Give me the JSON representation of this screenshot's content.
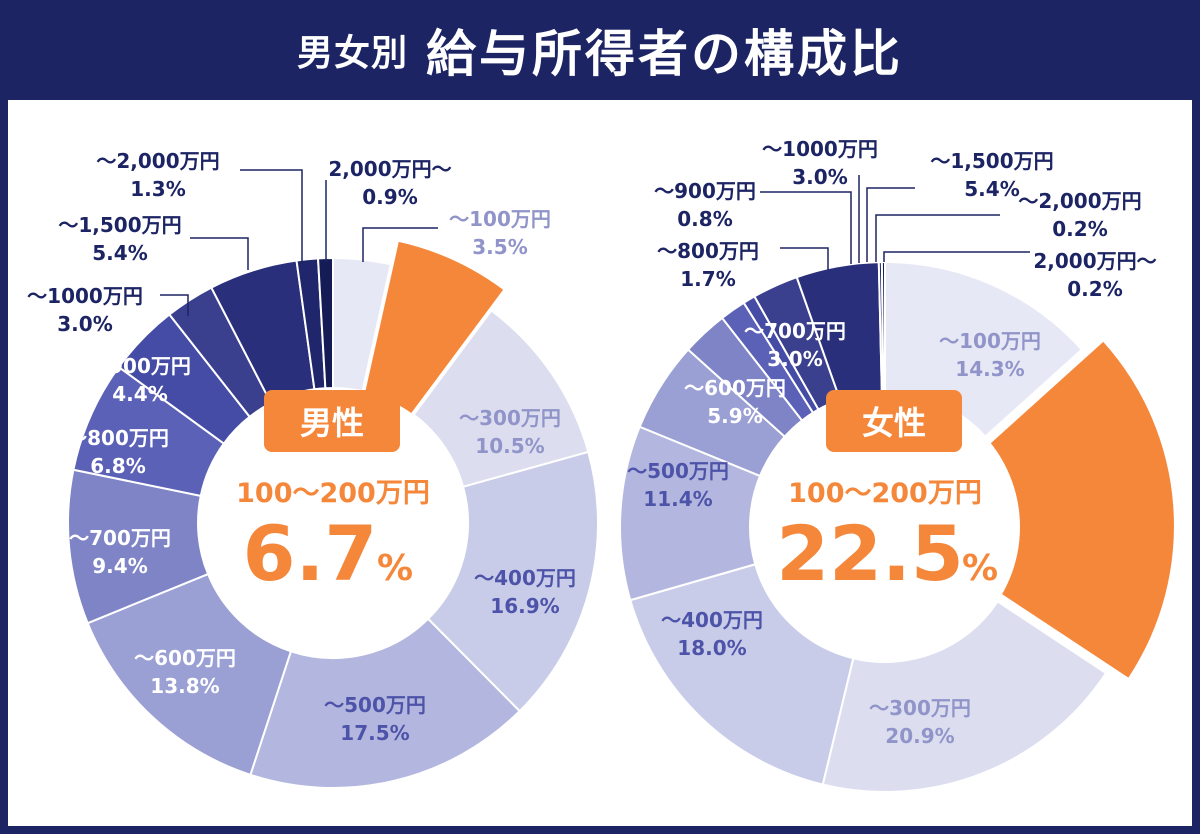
{
  "header": {
    "title_prefix": "男女別",
    "title_main": "給与所得者の構成比"
  },
  "colors": {
    "header_bg": "#1c2464",
    "highlight": "#f5873a",
    "ramp": [
      "#e7e8f5",
      "#f5873a",
      "#dcdef0",
      "#c9cce8",
      "#b3b7df",
      "#9a9fd4",
      "#7e84c6",
      "#5c61b8",
      "#454ca5",
      "#3a3f8e",
      "#2a2f7c",
      "#20266c",
      "#151b55"
    ]
  },
  "chart_data": [
    {
      "type": "pie",
      "donut": true,
      "center_badge": "男性",
      "center_category": "100〜200万円",
      "center_value": "6.7",
      "center_unit": "%",
      "highlight_index": 1,
      "categories": [
        "〜100万円",
        "100〜200万円",
        "〜300万円",
        "〜400万円",
        "〜500万円",
        "〜600万円",
        "〜700万円",
        "〜800万円",
        "〜900万円",
        "〜1000万円",
        "〜1,500万円",
        "〜2,000万円",
        "2,000万円〜"
      ],
      "values": [
        3.5,
        6.7,
        10.5,
        16.9,
        17.5,
        13.8,
        9.4,
        6.8,
        4.4,
        3.0,
        5.4,
        1.3,
        0.9
      ],
      "value_labels": [
        "3.5%",
        "6.7%",
        "10.5%",
        "16.9%",
        "17.5%",
        "13.8%",
        "9.4%",
        "6.8%",
        "4.4%",
        "3.0%",
        "5.4%",
        "1.3%",
        "0.9%"
      ]
    },
    {
      "type": "pie",
      "donut": true,
      "center_badge": "女性",
      "center_category": "100〜200万円",
      "center_value": "22.5",
      "center_unit": "%",
      "highlight_index": 1,
      "categories": [
        "〜100万円",
        "100〜200万円",
        "〜300万円",
        "〜400万円",
        "〜500万円",
        "〜600万円",
        "〜700万円",
        "〜800万円",
        "〜900万円",
        "〜1000万円",
        "〜1,500万円",
        "〜2,000万円",
        "2,000万円〜"
      ],
      "values": [
        14.3,
        22.5,
        20.9,
        18.0,
        11.4,
        5.9,
        3.0,
        1.7,
        0.8,
        3.0,
        5.4,
        0.2,
        0.2
      ],
      "value_labels": [
        "14.3%",
        "22.5%",
        "20.9%",
        "18.0%",
        "11.4%",
        "5.9%",
        "3.0%",
        "1.7%",
        "0.8%",
        "3.0%",
        "5.4%",
        "0.2%",
        "0.2%"
      ]
    }
  ]
}
